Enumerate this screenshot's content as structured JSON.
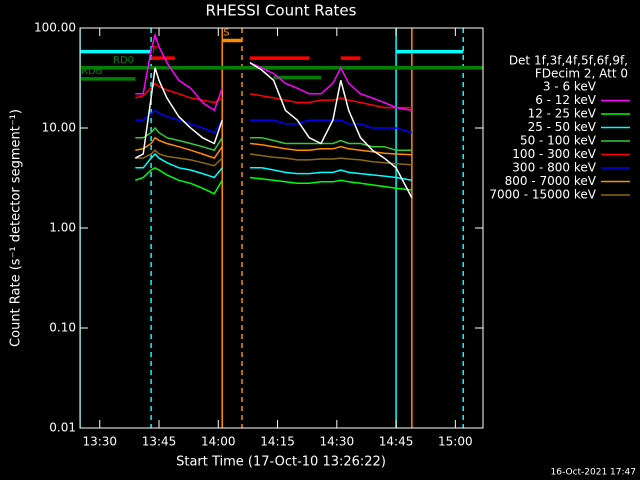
{
  "chart_data": {
    "type": "line",
    "title": "RHESSI Count Rates",
    "xlabel": "Start Time (17-Oct-10 13:26:22)",
    "ylabel": "Count Rate (s⁻¹ detector segment⁻¹)",
    "footer": "16-Oct-2021 17:47",
    "legend_header": [
      "Det 1f,3f,4f,5f,6f,9f,",
      "FDecim 2, Att 0"
    ],
    "log_y": true,
    "xlim": [
      "13:25",
      "15:07"
    ],
    "xticks": [
      "13:30",
      "13:45",
      "14:00",
      "14:15",
      "14:30",
      "14:45",
      "15:00"
    ],
    "ylim": [
      0.01,
      100
    ],
    "yticks": [
      {
        "value": 100,
        "label": "100.00"
      },
      {
        "value": 10,
        "label": "10.00"
      },
      {
        "value": 1,
        "label": "1.00"
      },
      {
        "value": 0.1,
        "label": "0.10"
      },
      0.01
    ],
    "x": [
      "13:39",
      "13:41",
      "13:43",
      "13:44",
      "13:45",
      "13:47",
      "13:50",
      "13:53",
      "13:56",
      "13:59",
      "14:01",
      "14:04",
      "14:08",
      "14:11",
      "14:14",
      "14:17",
      "14:20",
      "14:23",
      "14:26",
      "14:29",
      "14:31",
      "14:33",
      "14:36",
      "14:39",
      "14:42",
      "14:45",
      "14:49"
    ],
    "series": [
      {
        "name": "3 - 6 keV",
        "color": "#ffffff",
        "draw_color": "#000000",
        "values": [
          5,
          5.5,
          20,
          40,
          30,
          20,
          13,
          10,
          8,
          7,
          12,
          null,
          45,
          38,
          30,
          15,
          12,
          8,
          7,
          12,
          30,
          15,
          8,
          6,
          5,
          4,
          2
        ]
      },
      {
        "name": "6 - 12 keV",
        "color": "#ff00ff",
        "values": [
          22,
          22,
          60,
          85,
          65,
          45,
          30,
          25,
          18,
          15,
          25,
          null,
          45,
          40,
          35,
          28,
          25,
          22,
          22,
          28,
          40,
          28,
          22,
          20,
          18,
          16,
          15
        ]
      },
      {
        "name": "12 - 25 keV",
        "color": "#00ff00",
        "values": [
          3,
          3.2,
          3.8,
          4,
          3.8,
          3.4,
          3,
          2.8,
          2.5,
          2.2,
          3,
          null,
          3.2,
          3.1,
          3,
          2.9,
          2.8,
          2.8,
          2.9,
          2.9,
          3,
          2.9,
          2.8,
          2.7,
          2.6,
          2.5,
          2.4
        ]
      },
      {
        "name": "25 - 50 keV",
        "color": "#00ffff",
        "values": [
          4,
          4,
          5,
          5.5,
          5,
          4.5,
          4,
          3.8,
          3.5,
          3.2,
          4,
          null,
          4,
          4,
          3.8,
          3.6,
          3.5,
          3.5,
          3.6,
          3.6,
          3.8,
          3.6,
          3.5,
          3.4,
          3.3,
          3.2,
          3
        ]
      },
      {
        "name": "50 - 100 keV",
        "color": "#33cc33",
        "values": [
          8,
          8,
          9,
          10,
          9,
          8,
          7.5,
          7,
          6.5,
          6,
          8,
          null,
          8,
          8,
          7.5,
          7,
          7,
          7,
          7,
          7,
          7.5,
          7,
          7,
          6.5,
          6.5,
          6,
          6
        ]
      },
      {
        "name": "100 - 300 keV",
        "color": "#ff0000",
        "values": [
          20,
          21,
          25,
          28,
          26,
          24,
          22,
          20,
          19,
          18,
          20,
          null,
          22,
          21,
          20,
          19,
          18,
          18,
          19,
          19,
          20,
          19,
          18,
          17,
          16,
          16,
          16
        ]
      },
      {
        "name": "300 - 800 keV",
        "color": "#0000ff",
        "values": [
          12,
          12,
          14,
          15,
          14,
          13,
          12,
          11,
          10,
          9,
          12,
          null,
          12,
          12,
          12,
          11,
          11,
          12,
          12,
          12,
          12,
          11,
          11,
          10,
          10,
          10,
          9
        ]
      },
      {
        "name": "800 - 7000 keV",
        "color": "#ff8c00",
        "values": [
          6,
          6.2,
          7,
          8,
          7.5,
          7,
          6.5,
          6,
          5.5,
          5,
          6.5,
          null,
          7,
          6.8,
          6.5,
          6.2,
          6,
          6,
          6.2,
          6.2,
          6.5,
          6.2,
          6,
          5.8,
          5.6,
          5.5,
          5.4
        ]
      },
      {
        "name": "7000 - 15000 keV",
        "color": "#8b6914",
        "values": [
          5,
          5,
          5.5,
          6,
          5.5,
          5.2,
          5,
          4.8,
          4.5,
          4.2,
          5,
          null,
          5.5,
          5.3,
          5.1,
          5,
          4.8,
          4.8,
          4.9,
          4.9,
          5,
          4.9,
          4.8,
          4.6,
          4.5,
          4.4,
          4.3
        ]
      }
    ],
    "flag_bars": [
      {
        "label": "RD0",
        "color": "#008000",
        "x": [
          "13:25",
          "15:07"
        ],
        "y": 40
      },
      {
        "label": "RD6",
        "color": "#008000",
        "x": [
          "13:25",
          "13:39"
        ],
        "y": 31
      },
      {
        "label": "F",
        "color": "#ff0000",
        "x": [
          "13:43",
          "13:49"
        ],
        "y": 50
      },
      {
        "color": "#ff0000",
        "x": [
          "14:08",
          "14:23"
        ],
        "y": 50
      },
      {
        "color": "#ff0000",
        "x": [
          "14:31",
          "14:36"
        ],
        "y": 50
      },
      {
        "label": "S",
        "color": "#ff8c00",
        "x": [
          "14:01",
          "14:06"
        ],
        "y": 75
      },
      {
        "color": "#00ffff",
        "x": [
          "13:25",
          "13:43"
        ],
        "y": 58
      },
      {
        "color": "#00ffff",
        "x": [
          "14:45",
          "15:02"
        ],
        "y": 58
      },
      {
        "color": "#008000",
        "x": [
          "14:14",
          "14:26"
        ],
        "y": 32
      }
    ],
    "vlines": [
      {
        "x": "13:25",
        "color": "#00ffff",
        "style": "solid"
      },
      {
        "x": "13:43",
        "color": "#00ffff",
        "style": "dashed"
      },
      {
        "x": "14:01",
        "color": "#ff8c00",
        "style": "solid"
      },
      {
        "x": "14:06",
        "color": "#ff8c00",
        "style": "dashed"
      },
      {
        "x": "14:45",
        "color": "#00ffff",
        "style": "solid"
      },
      {
        "x": "14:49",
        "color": "#ff8c00",
        "style": "solid"
      },
      {
        "x": "15:02",
        "color": "#00ffff",
        "style": "dashed"
      }
    ]
  }
}
